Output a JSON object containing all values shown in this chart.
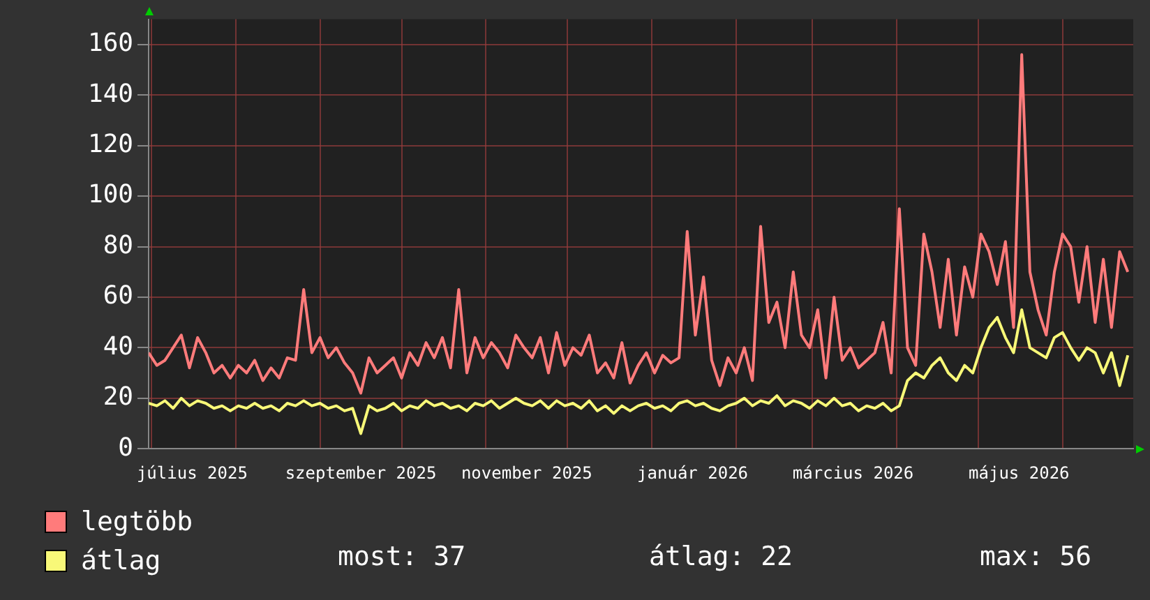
{
  "chart_data": {
    "type": "line",
    "x": [
      "2025-06-30",
      "2025-07-03",
      "2025-07-06",
      "2025-07-09",
      "2025-07-12",
      "2025-07-15",
      "2025-07-18",
      "2025-07-21",
      "2025-07-24",
      "2025-07-27",
      "2025-07-30",
      "2025-08-02",
      "2025-08-05",
      "2025-08-08",
      "2025-08-11",
      "2025-08-14",
      "2025-08-17",
      "2025-08-20",
      "2025-08-23",
      "2025-08-26",
      "2025-08-29",
      "2025-09-01",
      "2025-09-04",
      "2025-09-07",
      "2025-09-10",
      "2025-09-13",
      "2025-09-16",
      "2025-09-19",
      "2025-09-22",
      "2025-09-25",
      "2025-09-28",
      "2025-10-01",
      "2025-10-04",
      "2025-10-07",
      "2025-10-10",
      "2025-10-13",
      "2025-10-16",
      "2025-10-19",
      "2025-10-22",
      "2025-10-25",
      "2025-10-28",
      "2025-10-31",
      "2025-11-03",
      "2025-11-06",
      "2025-11-09",
      "2025-11-12",
      "2025-11-15",
      "2025-11-18",
      "2025-11-21",
      "2025-11-24",
      "2025-11-27",
      "2025-11-30",
      "2025-12-03",
      "2025-12-06",
      "2025-12-09",
      "2025-12-12",
      "2025-12-15",
      "2025-12-18",
      "2025-12-21",
      "2025-12-24",
      "2025-12-27",
      "2025-12-30",
      "2026-01-02",
      "2026-01-05",
      "2026-01-08",
      "2026-01-11",
      "2026-01-14",
      "2026-01-17",
      "2026-01-20",
      "2026-01-23",
      "2026-01-26",
      "2026-01-29",
      "2026-02-01",
      "2026-02-04",
      "2026-02-07",
      "2026-02-10",
      "2026-02-13",
      "2026-02-16",
      "2026-02-19",
      "2026-02-22",
      "2026-02-25",
      "2026-02-28",
      "2026-03-03",
      "2026-03-06",
      "2026-03-09",
      "2026-03-12",
      "2026-03-15",
      "2026-03-18",
      "2026-03-21",
      "2026-03-24",
      "2026-03-27",
      "2026-03-30",
      "2026-04-02",
      "2026-04-05",
      "2026-04-08",
      "2026-04-11",
      "2026-04-14",
      "2026-04-17",
      "2026-04-20",
      "2026-04-23",
      "2026-04-26",
      "2026-04-29",
      "2026-05-02",
      "2026-05-05",
      "2026-05-08",
      "2026-05-11",
      "2026-05-14",
      "2026-05-17",
      "2026-05-20",
      "2026-05-23",
      "2026-05-26",
      "2026-05-29",
      "2026-06-01",
      "2026-06-04",
      "2026-06-07",
      "2026-06-10",
      "2026-06-13",
      "2026-06-16",
      "2026-06-19",
      "2026-06-22",
      "2026-06-25"
    ],
    "series": [
      {
        "name": "legtöbb",
        "color": "#ff7b7b",
        "values": [
          38,
          33,
          35,
          40,
          45,
          32,
          44,
          38,
          30,
          33,
          28,
          33,
          30,
          35,
          27,
          32,
          28,
          36,
          35,
          63,
          38,
          44,
          36,
          40,
          34,
          30,
          22,
          36,
          30,
          33,
          36,
          28,
          38,
          33,
          42,
          36,
          44,
          32,
          63,
          30,
          44,
          36,
          42,
          38,
          32,
          45,
          40,
          36,
          44,
          30,
          46,
          33,
          40,
          37,
          45,
          30,
          34,
          28,
          42,
          26,
          33,
          38,
          30,
          37,
          34,
          36,
          86,
          45,
          68,
          35,
          25,
          36,
          30,
          40,
          27,
          88,
          50,
          58,
          40,
          70,
          45,
          40,
          55,
          28,
          60,
          35,
          40,
          32,
          35,
          38,
          50,
          30,
          95,
          40,
          33,
          85,
          70,
          48,
          75,
          45,
          72,
          60,
          85,
          78,
          65,
          82,
          48,
          156,
          70,
          55,
          45,
          70,
          85,
          80,
          58,
          80,
          50,
          75,
          48,
          78,
          70
        ]
      },
      {
        "name": "átlag",
        "color": "#f8f878",
        "values": [
          18,
          17,
          19,
          16,
          20,
          17,
          19,
          18,
          16,
          17,
          15,
          17,
          16,
          18,
          16,
          17,
          15,
          18,
          17,
          19,
          17,
          18,
          16,
          17,
          15,
          16,
          6,
          17,
          15,
          16,
          18,
          15,
          17,
          16,
          19,
          17,
          18,
          16,
          17,
          15,
          18,
          17,
          19,
          16,
          18,
          20,
          18,
          17,
          19,
          16,
          19,
          17,
          18,
          16,
          19,
          15,
          17,
          14,
          17,
          15,
          17,
          18,
          16,
          17,
          15,
          18,
          19,
          17,
          18,
          16,
          15,
          17,
          18,
          20,
          17,
          19,
          18,
          21,
          17,
          19,
          18,
          16,
          19,
          17,
          20,
          17,
          18,
          15,
          17,
          16,
          18,
          15,
          17,
          27,
          30,
          28,
          33,
          36,
          30,
          27,
          33,
          30,
          40,
          48,
          52,
          44,
          38,
          55,
          40,
          38,
          36,
          44,
          46,
          40,
          35,
          40,
          38,
          30,
          38,
          25,
          37
        ]
      }
    ],
    "xlim": [
      "2025-06-30",
      "2026-06-27"
    ],
    "xticks": [
      {
        "value": "2025-07-01",
        "label": null
      },
      {
        "value": "2025-07-16",
        "label": "július 2025"
      },
      {
        "value": "2025-08-01",
        "label": null
      },
      {
        "value": "2025-09-01",
        "label": null
      },
      {
        "value": "2025-09-16",
        "label": "szeptember 2025"
      },
      {
        "value": "2025-10-01",
        "label": null
      },
      {
        "value": "2025-11-01",
        "label": null
      },
      {
        "value": "2025-11-16",
        "label": "november 2025"
      },
      {
        "value": "2025-12-01",
        "label": null
      },
      {
        "value": "2026-01-01",
        "label": null
      },
      {
        "value": "2026-01-16",
        "label": "január 2026"
      },
      {
        "value": "2026-02-01",
        "label": null
      },
      {
        "value": "2026-03-01",
        "label": null
      },
      {
        "value": "2026-03-16",
        "label": "március 2026"
      },
      {
        "value": "2026-04-01",
        "label": null
      },
      {
        "value": "2026-05-01",
        "label": null
      },
      {
        "value": "2026-05-16",
        "label": "május 2026"
      },
      {
        "value": "2026-06-01",
        "label": null
      }
    ],
    "ylim": [
      0,
      170
    ],
    "yticks": [
      0,
      20,
      40,
      60,
      80,
      100,
      120,
      140,
      160
    ],
    "grid": true,
    "legend": "bottom left",
    "marker": "none",
    "line_style": "solid",
    "annotations": [
      "most: 37",
      "átlag: 22",
      "max: 56"
    ]
  }
}
